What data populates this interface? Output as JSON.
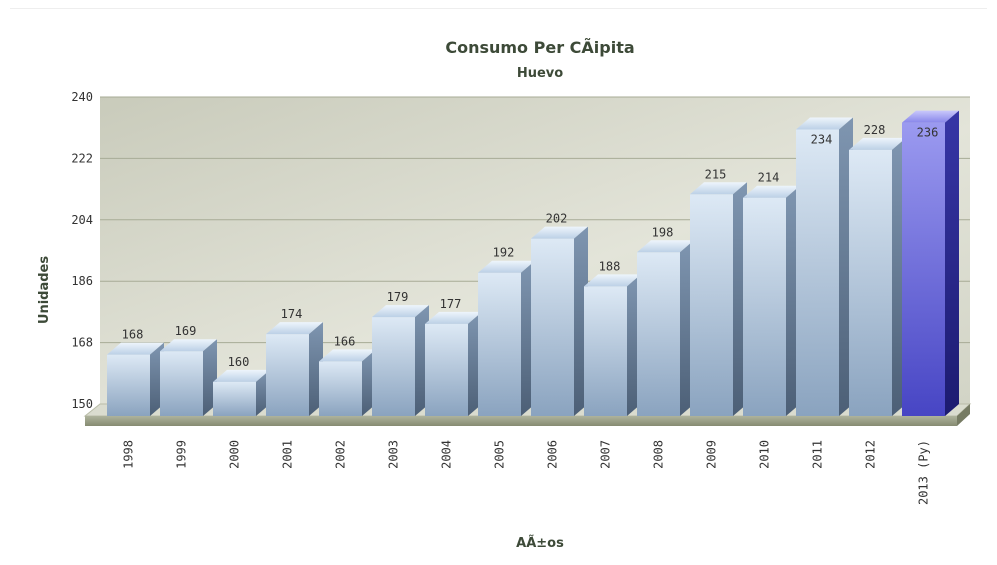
{
  "chart_data": {
    "type": "bar",
    "title": "Consumo Per CÃipita",
    "subtitle": "Huevo",
    "xlabel": "AÃ±os",
    "ylabel": "Unidades",
    "ylim": [
      150,
      240
    ],
    "yticks": [
      "150",
      "168",
      "186",
      "204",
      "222",
      "240"
    ],
    "grid": true,
    "categories": [
      "1998",
      "1999",
      "2000",
      "2001",
      "2002",
      "2003",
      "2004",
      "2005",
      "2006",
      "2007",
      "2008",
      "2009",
      "2010",
      "2011",
      "2012",
      "2013 (Py)"
    ],
    "values": [
      168,
      169,
      160,
      174,
      166,
      179,
      177,
      192,
      202,
      188,
      198,
      215,
      214,
      234,
      228,
      236
    ],
    "value_labels": [
      "168",
      "169",
      "160",
      "174",
      "166",
      "179",
      "177",
      "192",
      "202",
      "188",
      "198",
      "215",
      "214",
      "234",
      "228",
      "236"
    ],
    "bar_color": "#b7cbe2",
    "highlight_color": "#7f7ee0",
    "highlight_index": 15
  }
}
